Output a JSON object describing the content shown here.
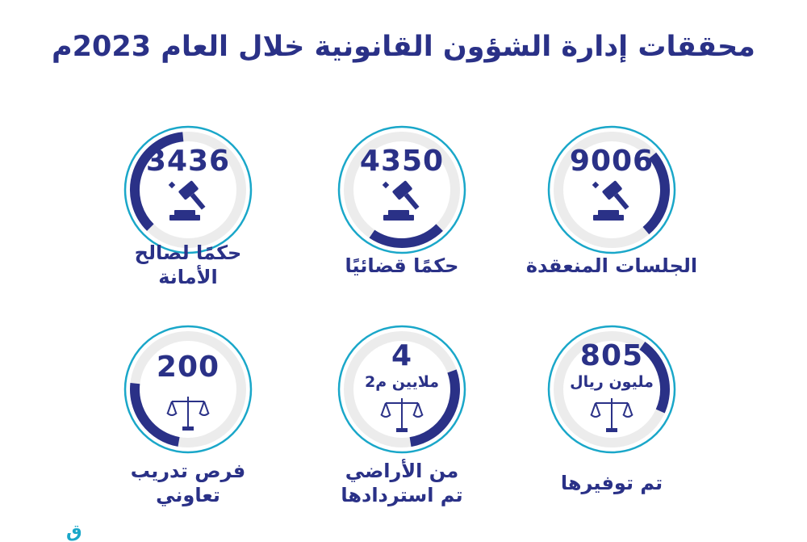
{
  "title": "محققات إدارة الشؤون القانونية خلال العام 2023م",
  "colors": {
    "navy": "#2a3187",
    "teal": "#1aa7c9",
    "ring_bg": "#e6e6e6"
  },
  "stats": [
    {
      "value": "9006",
      "unit": "",
      "icon": "gavel-icon",
      "label_lines": [
        "الجلسات المنعقدة"
      ],
      "progress": 0.25
    },
    {
      "value": "4350",
      "unit": "",
      "icon": "gavel-icon",
      "label_lines": [
        "حكمًا قضائيًا"
      ],
      "progress": 0.22
    },
    {
      "value": "3436",
      "unit": "",
      "icon": "gavel-icon",
      "label_lines": [
        "حكمًا لصالح",
        "الأمانة"
      ],
      "progress": 0.36
    },
    {
      "value": "805",
      "unit": "مليون ريال",
      "icon": "scales-icon",
      "label_lines": [
        "تم توفيرها"
      ],
      "progress": 0.22
    },
    {
      "value": "4",
      "unit": "ملايين م2",
      "icon": "scales-icon",
      "label_lines": [
        "من الأراضي",
        "تم استردادها"
      ],
      "progress": 0.28
    },
    {
      "value": "200",
      "unit": "",
      "icon": "scales-icon",
      "label_lines": [
        "فرص تدريب",
        "تعاوني"
      ],
      "progress": 0.24
    }
  ],
  "corner_mark": "ق"
}
